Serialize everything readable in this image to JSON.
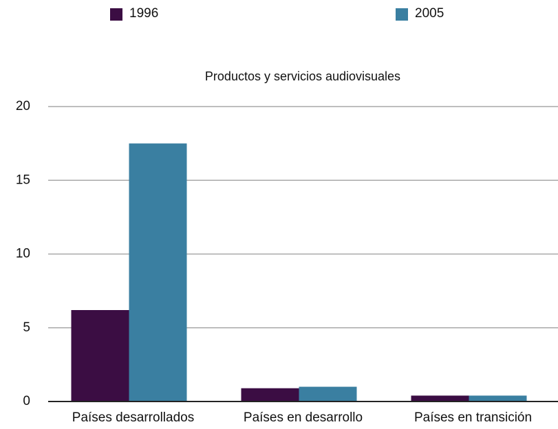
{
  "chart_data": {
    "type": "bar",
    "title": "Productos y servicios audiovisuales",
    "categories": [
      "Países desarrollados",
      "Países en desarrollo",
      "Países en transición"
    ],
    "series": [
      {
        "name": "1996",
        "color": "#3b0d43",
        "values": [
          6.2,
          0.9,
          0.4
        ]
      },
      {
        "name": "2005",
        "color": "#3a7fa1",
        "values": [
          17.5,
          1.0,
          0.4
        ]
      }
    ],
    "ylim": [
      0,
      20
    ],
    "yticks": [
      0,
      5,
      10,
      15,
      20
    ],
    "grid": true
  }
}
